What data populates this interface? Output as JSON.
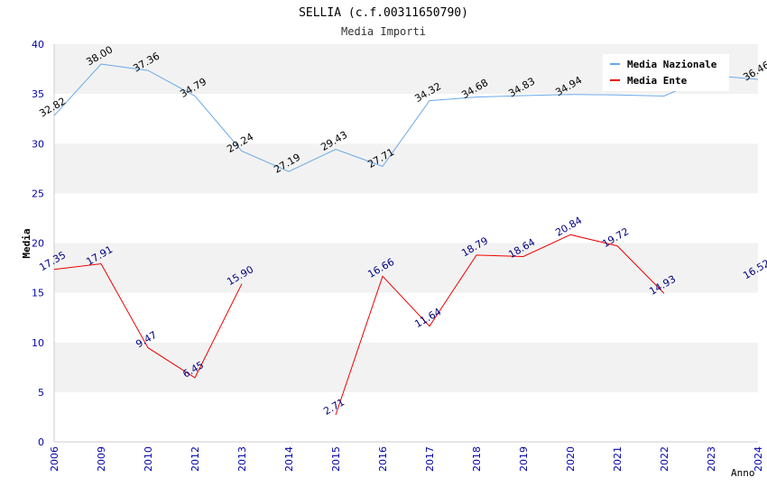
{
  "chart_data": {
    "type": "line",
    "title": "SELLIA (c.f.00311650790)",
    "subtitle": "Media Importi",
    "xlabel": "Anno",
    "ylabel": "Media",
    "ylim": [
      0,
      40
    ],
    "yticks": [
      0,
      5,
      10,
      15,
      20,
      25,
      30,
      35,
      40
    ],
    "grid": "horizontal alternating bands",
    "legend_position": "top-right",
    "categories": [
      "2006",
      "2009",
      "2010",
      "2012",
      "2013",
      "2014",
      "2015",
      "2016",
      "2017",
      "2018",
      "2019",
      "2020",
      "2021",
      "2022",
      "2023",
      "2024"
    ],
    "series": [
      {
        "name": "Media Nazionale",
        "color": "#6aa9e8",
        "label_color": "#000000",
        "values": [
          32.82,
          38.0,
          37.36,
          34.79,
          29.24,
          27.19,
          29.43,
          27.71,
          34.32,
          34.68,
          34.83,
          34.94,
          34.9,
          34.79,
          36.86,
          36.46
        ],
        "labels": [
          "32.82",
          "38.00",
          "37.36",
          "34.79",
          "29.24",
          "27.19",
          "29.43",
          "27.71",
          "34.32",
          "34.68",
          "34.83",
          "34.94",
          "",
          "",
          "",
          "36.46"
        ]
      },
      {
        "name": "Media Ente",
        "color": "#ee0000",
        "label_color": "#000080",
        "values": [
          17.35,
          17.91,
          9.47,
          6.45,
          15.9,
          null,
          2.71,
          16.66,
          11.64,
          18.79,
          18.64,
          20.84,
          19.72,
          14.93,
          null,
          16.52
        ],
        "labels": [
          "17.35",
          "17.91",
          "9.47",
          "6.45",
          "15.90",
          "",
          "2.71",
          "16.66",
          "11.64",
          "18.79",
          "18.64",
          "20.84",
          "19.72",
          "14.93",
          "",
          "16.52"
        ]
      }
    ]
  }
}
